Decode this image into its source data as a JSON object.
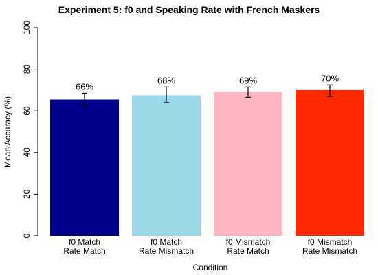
{
  "chart_data": {
    "type": "bar",
    "title": "Experiment 5: f0 and Speaking Rate with French Maskers",
    "xlabel": "Condition",
    "ylabel": "Mean Accuracy (%)",
    "ylim": [
      0,
      100
    ],
    "yticks": [
      0,
      20,
      40,
      60,
      80,
      100
    ],
    "categories": [
      [
        "f0 Match",
        "Rate Match"
      ],
      [
        "f0 Match",
        "Rate Mismatch"
      ],
      [
        "f0 Mismatch",
        "Rate Match"
      ],
      [
        "f0 Mismatch",
        "Rate Mismatch"
      ]
    ],
    "values": [
      65.5,
      67.5,
      69,
      70
    ],
    "value_labels": [
      "66%",
      "68%",
      "69%",
      "70%"
    ],
    "error_low": [
      62.5,
      64,
      66.5,
      67
    ],
    "error_high": [
      68.5,
      71.5,
      71.5,
      72.5
    ],
    "colors": [
      "#00008b",
      "#9ad8ea",
      "#ffb6c1",
      "#ff2a00"
    ],
    "grid": false
  }
}
